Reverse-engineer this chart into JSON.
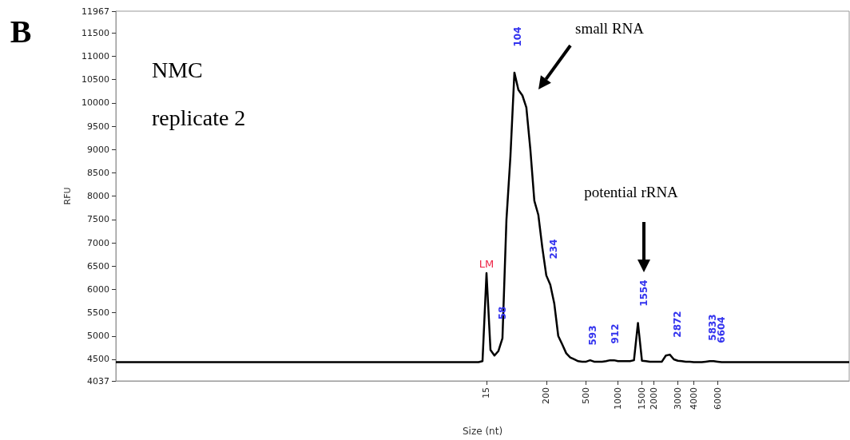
{
  "chart_data": {
    "type": "line",
    "xlabel": "Size (nt)",
    "ylabel": "RFU",
    "categories": [
      null,
      null,
      null,
      null,
      null,
      null,
      null,
      null,
      null,
      null,
      null,
      null,
      null,
      null,
      null,
      null,
      null,
      null,
      null,
      null,
      null,
      null,
      null,
      null,
      null,
      null,
      null,
      null,
      null,
      null,
      null,
      null,
      null,
      null,
      null,
      null,
      null,
      null,
      null,
      null,
      null,
      null,
      null,
      null,
      null,
      null,
      null,
      null,
      null,
      null,
      null,
      null,
      null,
      null,
      null,
      null,
      null,
      null,
      null,
      null,
      null,
      null,
      null,
      null,
      null,
      null,
      null,
      null,
      null,
      null,
      null,
      null,
      null,
      null,
      null,
      null,
      null,
      null,
      null,
      null,
      null,
      null,
      null,
      null,
      null,
      null,
      null,
      null,
      null,
      null,
      null,
      null,
      null,
      "15",
      null,
      null,
      null,
      null,
      null,
      null,
      null,
      null,
      null,
      null,
      null,
      null,
      null,
      null,
      "200",
      null,
      null,
      null,
      null,
      null,
      null,
      null,
      null,
      null,
      "500",
      null,
      null,
      null,
      null,
      null,
      null,
      null,
      "1000",
      null,
      null,
      null,
      null,
      null,
      "1500",
      null,
      null,
      "2000",
      null,
      null,
      null,
      null,
      null,
      "3000",
      null,
      null,
      null,
      "4000",
      null,
      null,
      null,
      null,
      null,
      "6000",
      null,
      null,
      null,
      null,
      null,
      null,
      null,
      null,
      null,
      null,
      null,
      null,
      null,
      null,
      null,
      null,
      null,
      null,
      null,
      null,
      null,
      null,
      null,
      null,
      null,
      null,
      null,
      null,
      null,
      null,
      null,
      null,
      null
    ],
    "series": [
      {
        "color": "#000000",
        "values": [
          4440,
          4440,
          4440,
          4440,
          4440,
          4440,
          4440,
          4440,
          4440,
          4440,
          4440,
          4440,
          4440,
          4440,
          4440,
          4440,
          4440,
          4440,
          4440,
          4440,
          4440,
          4440,
          4440,
          4440,
          4440,
          4440,
          4440,
          4440,
          4440,
          4440,
          4440,
          4440,
          4440,
          4440,
          4440,
          4440,
          4440,
          4440,
          4440,
          4440,
          4440,
          4440,
          4440,
          4440,
          4440,
          4440,
          4440,
          4440,
          4440,
          4440,
          4440,
          4440,
          4440,
          4440,
          4440,
          4440,
          4440,
          4440,
          4440,
          4440,
          4440,
          4440,
          4440,
          4440,
          4440,
          4440,
          4440,
          4440,
          4440,
          4440,
          4440,
          4440,
          4440,
          4440,
          4440,
          4440,
          4440,
          4440,
          4440,
          4440,
          4440,
          4440,
          4440,
          4440,
          4440,
          4440,
          4440,
          4440,
          4440,
          4440,
          4440,
          4440,
          4460,
          6350,
          4700,
          4580,
          4680,
          4950,
          7490,
          8850,
          10650,
          10280,
          10160,
          9900,
          9000,
          7900,
          7600,
          6900,
          6300,
          6100,
          5700,
          5000,
          4820,
          4630,
          4540,
          4500,
          4460,
          4450,
          4450,
          4480,
          4450,
          4450,
          4450,
          4460,
          4480,
          4480,
          4460,
          4460,
          4460,
          4460,
          4480,
          5280,
          4470,
          4460,
          4450,
          4450,
          4450,
          4450,
          4580,
          4600,
          4500,
          4470,
          4460,
          4450,
          4450,
          4440,
          4440,
          4440,
          4450,
          4460,
          4460,
          4450,
          4440,
          4440,
          4440,
          4440,
          4440,
          4440,
          4440,
          4440,
          4440,
          4440,
          4440,
          4440,
          4440,
          4440,
          4440,
          4440,
          4440,
          4440,
          4440,
          4440,
          4440,
          4440,
          4440,
          4440,
          4440,
          4440,
          4440,
          4440,
          4440,
          4440,
          4440,
          4440,
          4440
        ]
      }
    ],
    "ylim": [
      4037,
      11967
    ],
    "yticks": [
      4037,
      4500,
      5000,
      5500,
      6000,
      6500,
      7000,
      7500,
      8000,
      8500,
      9000,
      9500,
      10000,
      10500,
      11000,
      11500,
      11967
    ],
    "marker": "none",
    "line_style": "solid",
    "annotations": [
      "B",
      "NMC",
      "replicate 2",
      "small RNA",
      "potential rRNA",
      "LM",
      "58",
      "104",
      "234",
      "593",
      "912",
      "1554",
      "2872",
      "5833",
      "6604"
    ]
  }
}
